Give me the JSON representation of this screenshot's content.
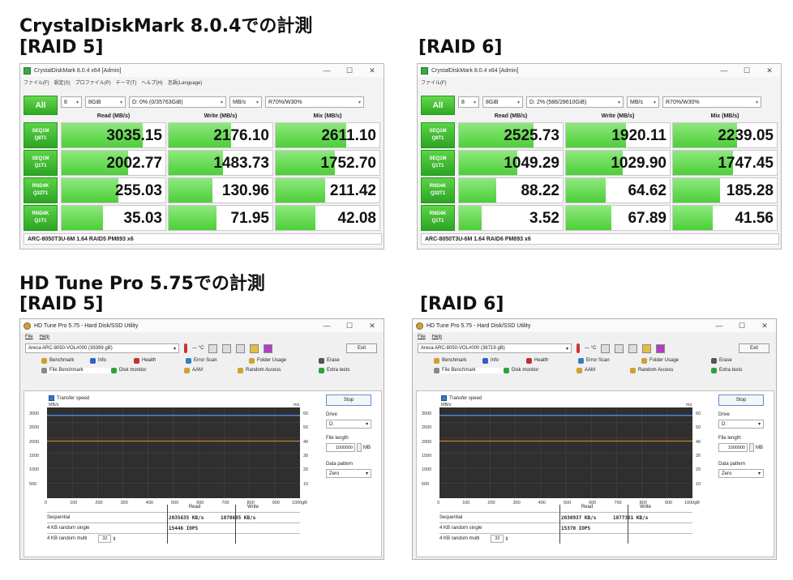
{
  "headings": {
    "cdm_heading": "CrystalDiskMark 8.0.4での計測",
    "cdm_raid5": "[RAID 5]",
    "cdm_raid6": "[RAID 6]",
    "hdt_heading": "HD Tune Pro 5.75での計測",
    "hdt_raid5": "[RAID 5]",
    "hdt_raid6": "[RAID 6]"
  },
  "cdm_common": {
    "title": "CrystalDiskMark 8.0.4 x64 [Admin]",
    "all_label": "All",
    "count": "8",
    "size": "8GiB",
    "unit": "MB/s",
    "profile": "R70%/W30%",
    "col_read": "Read (MB/s)",
    "col_write": "Write (MB/s)",
    "col_mix": "Mix (MB/s)",
    "row_labels": [
      {
        "l1": "SEQ1M",
        "l2": "Q8T1"
      },
      {
        "l1": "SEQ1M",
        "l2": "Q1T1"
      },
      {
        "l1": "RND4K",
        "l2": "Q32T1"
      },
      {
        "l1": "RND4K",
        "l2": "Q1T1"
      }
    ],
    "window_buttons": {
      "min": "—",
      "max": "☐",
      "close": "✕"
    }
  },
  "cdm_raid5": {
    "menu": [
      "ファイル(F)",
      "設定(S)",
      "プロファイル(P)",
      "テーマ(T)",
      "ヘルプ(H)",
      "言語(Language)"
    ],
    "drive": "D: 0% (0/35763GiB)",
    "rows": [
      {
        "read": "3035.15",
        "write": "2176.10",
        "mix": "2611.10",
        "rf": 0.78,
        "wf": 0.6,
        "mf": 0.68
      },
      {
        "read": "2002.77",
        "write": "1483.73",
        "mix": "1752.70",
        "rf": 0.64,
        "wf": 0.52,
        "mf": 0.57
      },
      {
        "read": "255.03",
        "write": "130.96",
        "mix": "211.42",
        "rf": 0.55,
        "wf": 0.42,
        "mf": 0.48
      },
      {
        "read": "35.03",
        "write": "71.95",
        "mix": "42.08",
        "rf": 0.4,
        "wf": 0.46,
        "mf": 0.38
      }
    ],
    "footer": "ARC-8050T3U-6M 1.64 RAID5 PM893 x6"
  },
  "cdm_raid6": {
    "menu": [
      "ファイル(F)"
    ],
    "drive": "D: 2% (586/28610GiB)",
    "rows": [
      {
        "read": "2525.73",
        "write": "1920.11",
        "mix": "2239.05",
        "rf": 0.72,
        "wf": 0.58,
        "mf": 0.62
      },
      {
        "read": "1049.29",
        "write": "1029.90",
        "mix": "1747.45",
        "rf": 0.56,
        "wf": 0.55,
        "mf": 0.58
      },
      {
        "read": "88.22",
        "write": "64.62",
        "mix": "185.28",
        "rf": 0.36,
        "wf": 0.38,
        "mf": 0.45
      },
      {
        "read": "3.52",
        "write": "67.89",
        "mix": "41.56",
        "rf": 0.22,
        "wf": 0.44,
        "mf": 0.38
      }
    ],
    "footer": "ARC-8050T3U-6M 1.64 RAID6 PM893 x6"
  },
  "hdt_common": {
    "title": "HD Tune Pro 5.75 - Hard Disk/SSD Utility",
    "menu_file": "File",
    "menu_help": "Help",
    "temp": "— °C",
    "exit": "Exit",
    "tabs_row1": [
      "Benchmark",
      "Info",
      "Health",
      "Error Scan",
      "Folder Usage",
      "Erase"
    ],
    "tabs_row2": [
      "File Benchmark",
      "Disk monitor",
      "AAM",
      "Random Access",
      "Extra tests"
    ],
    "transfer_speed": "Transfer speed",
    "unit_left": "MB/s",
    "unit_right": "ms",
    "y_left": [
      "3000",
      "2500",
      "2000",
      "1500",
      "1000",
      "500"
    ],
    "y_right": [
      "60",
      "50",
      "40",
      "30",
      "20",
      "10"
    ],
    "x_ticks": [
      "0",
      "100",
      "200",
      "300",
      "400",
      "500",
      "600",
      "700",
      "800",
      "900",
      "1000gB"
    ],
    "stop": "Stop",
    "drive_label": "Drive",
    "drive_value": "D:",
    "file_length_label": "File length",
    "file_length_value": "1000000",
    "file_length_unit": "MB",
    "pattern_label": "Data pattern",
    "pattern_value": "Zero",
    "col_read": "Read",
    "col_write": "Write",
    "row_seq": "Sequential",
    "row_4k_single": "4 KB random single",
    "row_4k_multi": "4 KB random multi",
    "qd": "32"
  },
  "hdt_raid5": {
    "drive": "Areca   ARC-8050-VOL#000 (39399 gB)",
    "seq_read": "2035635 KB/s",
    "seq_write": "1870605 KB/s",
    "rnd_read": "15446 IOPS"
  },
  "hdt_raid6": {
    "drive": "Areca   ARC-8050-VOL#000 (36719 gB)",
    "seq_read": "2030937 KB/s",
    "seq_write": "1877361 KB/s",
    "rnd_read": "15370 IOPS"
  },
  "colors": {
    "cdm_green": "#3cbf2c",
    "hdt_read_line": "#4a86d6",
    "hdt_write_line": "#d07a2a",
    "plot_bg": "#2f2f2f"
  },
  "hdt_chart_levels": {
    "raid5": {
      "read_mbps": 2930,
      "write_mbps": 2020
    },
    "raid6": {
      "read_mbps": 2930,
      "write_mbps": 2020
    },
    "y_max": 3000
  }
}
